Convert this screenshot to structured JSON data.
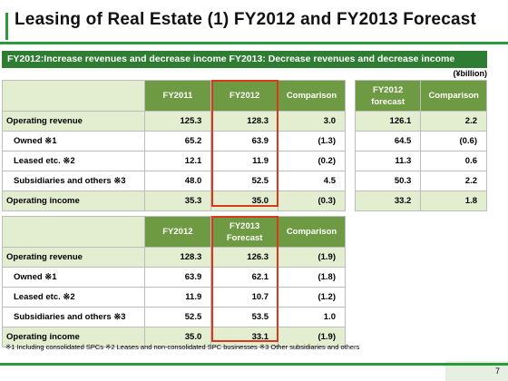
{
  "title": "Leasing of Real Estate (1) FY2012 and FY2013 Forecast",
  "subtitle": "FY2012:Increase revenues and decrease income FY2013:  Decrease revenues and decrease income",
  "unit": "(¥billion)",
  "table1": {
    "headers": [
      "FY2011",
      "FY2012",
      "Comparison"
    ],
    "rows": [
      {
        "label": "Operating revenue",
        "v1": "125.3",
        "v2": "128.3",
        "v3": "3.0"
      },
      {
        "label": "Owned ※1",
        "v1": "65.2",
        "v2": "63.9",
        "v3": "(1.3)"
      },
      {
        "label": "Leased etc. ※2",
        "v1": "12.1",
        "v2": "11.9",
        "v3": "(0.2)"
      },
      {
        "label": "Subsidiaries and others ※3",
        "v1": "48.0",
        "v2": "52.5",
        "v3": "4.5"
      },
      {
        "label": "Operating income",
        "v1": "35.3",
        "v2": "35.0",
        "v3": "(0.3)"
      }
    ]
  },
  "table2": {
    "headers": [
      "FY2012 forecast",
      "Comparison"
    ],
    "header1_line1": "FY2012",
    "header1_line2": "forecast",
    "rows": [
      {
        "v1": "126.1",
        "v2": "2.2"
      },
      {
        "v1": "64.5",
        "v2": "(0.6)"
      },
      {
        "v1": "11.3",
        "v2": "0.6"
      },
      {
        "v1": "50.3",
        "v2": "2.2"
      },
      {
        "v1": "33.2",
        "v2": "1.8"
      }
    ]
  },
  "table3": {
    "headers": [
      "FY2012",
      "FY2013 Forecast",
      "Comparison"
    ],
    "header2_line1": "FY2013",
    "header2_line2": "Forecast",
    "rows": [
      {
        "label": "Operating revenue",
        "v1": "128.3",
        "v2": "126.3",
        "v3": "(1.9)"
      },
      {
        "label": "Owned ※1",
        "v1": "63.9",
        "v2": "62.1",
        "v3": "(1.8)"
      },
      {
        "label": "Leased etc. ※2",
        "v1": "11.9",
        "v2": "10.7",
        "v3": "(1.2)"
      },
      {
        "label": "Subsidiaries and others ※3",
        "v1": "52.5",
        "v2": "53.5",
        "v3": "1.0"
      },
      {
        "label": "Operating income",
        "v1": "35.0",
        "v2": "33.1",
        "v3": "(1.9)"
      }
    ]
  },
  "footnote": "※1 Including consolidated SPCs  ※2 Leases and non-consolidated SPC businesses  ※3 Other subsidiaries and others",
  "page_number": "7",
  "colors": {
    "accent_green": "#2a9a3c",
    "header_green": "#6d9a42",
    "row_shade": "#e3edd0",
    "highlight_red": "#d9391b"
  }
}
